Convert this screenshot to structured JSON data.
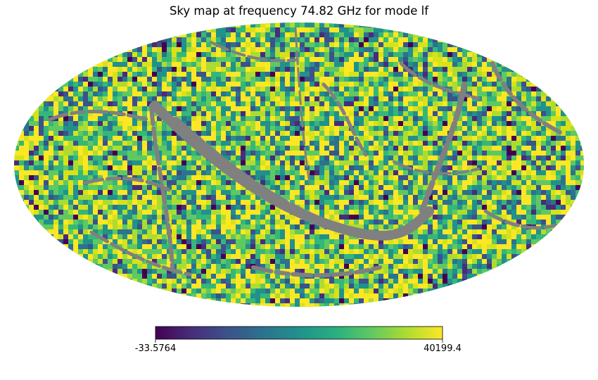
{
  "chart_data": {
    "type": "heatmap",
    "projection": "mollweide",
    "title": "Sky map at frequency 74.82 GHz for mode lf",
    "colormap": "viridis",
    "masked_color": "#808080",
    "colorbar": {
      "orientation": "horizontal",
      "min": -33.5764,
      "max": 40199.4,
      "min_label": "-33.5764",
      "max_label": "40199.4"
    },
    "grid": false
  }
}
